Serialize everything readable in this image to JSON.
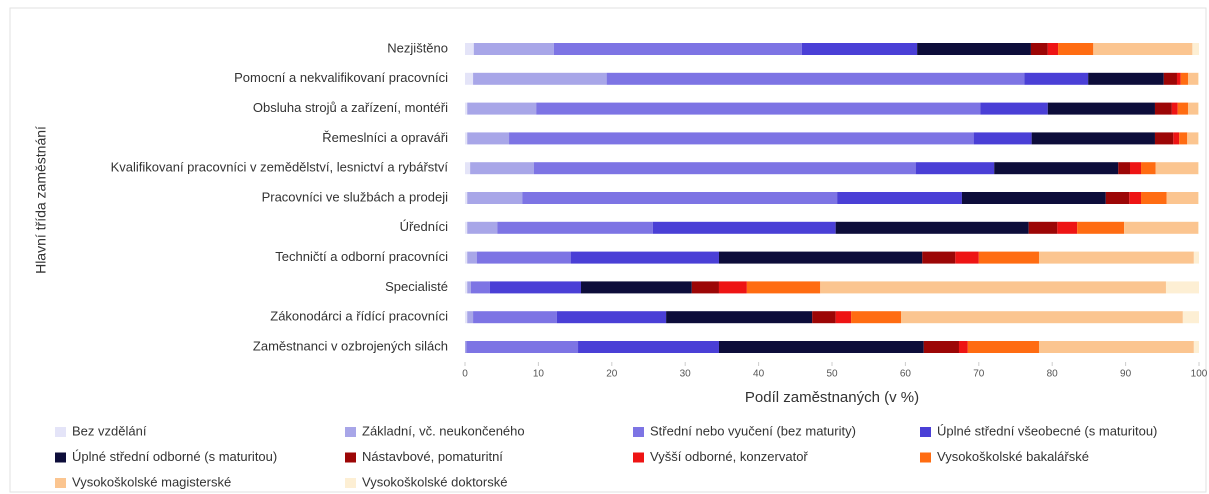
{
  "chart_data": {
    "type": "stacked-bar-horizontal",
    "xlabel": "Podíl zaměstnaných (v %)",
    "ylabel": "Hlavní třída zaměstnání",
    "categories": [
      "Nezjištěno",
      "Pomocní a nekvalifikovaní pracovníci",
      "Obsluha strojů a zařízení, montéři",
      "Řemeslníci a opraváři",
      "Kvalifikovaní pracovníci v zemědělství, lesnictví a rybářství",
      "Pracovníci ve službách a prodeji",
      "Úředníci",
      "Techničtí a odborní pracovníci",
      "Specialisté",
      "Zákonodárci a řídící pracovníci",
      "Zaměstnanci v ozbrojených silách"
    ],
    "xlim": [
      0,
      100
    ],
    "xticks": [
      0,
      10,
      20,
      30,
      40,
      50,
      60,
      70,
      80,
      90,
      100
    ],
    "series": [
      {
        "name": "Bez vzdělání",
        "color": "#e4e4f8",
        "values": [
          1.2,
          1.1,
          0.3,
          0.3,
          0.7,
          0.3,
          0.3,
          0.3,
          0.3,
          0.3,
          0
        ]
      },
      {
        "name": "Základní, vč. neukončeného",
        "color": "#a8a6e8",
        "values": [
          10.9,
          18.2,
          9.4,
          5.7,
          8.7,
          7.5,
          4.1,
          1.3,
          0.5,
          0.8,
          0.2
        ]
      },
      {
        "name": "Střední nebo vyučení (bez maturity)",
        "color": "#7d74e4",
        "values": [
          33.8,
          56.9,
          60.5,
          63.3,
          52.0,
          42.9,
          21.2,
          12.8,
          2.6,
          11.4,
          15.2
        ]
      },
      {
        "name": "Úplné střední všeobecné (s maturitou)",
        "color": "#4a3fd6",
        "values": [
          15.7,
          8.7,
          9.2,
          7.9,
          10.7,
          17.0,
          24.9,
          20.2,
          12.4,
          14.9,
          19.2
        ]
      },
      {
        "name": "Úplné střední odborné (s maturitou)",
        "color": "#0d0d3a",
        "values": [
          15.5,
          10.3,
          14.6,
          16.8,
          16.9,
          19.6,
          26.3,
          27.7,
          15.1,
          19.9,
          27.9
        ]
      },
      {
        "name": "Nástavbové, pomaturitní",
        "color": "#9c0606",
        "values": [
          2.3,
          1.8,
          2.3,
          2.5,
          1.6,
          3.2,
          3.9,
          4.5,
          3.7,
          3.2,
          4.8
        ]
      },
      {
        "name": "Vyšší odborné, konzervatoř",
        "color": "#ee1414",
        "values": [
          1.4,
          0.5,
          0.8,
          0.8,
          1.5,
          1.6,
          2.7,
          3.2,
          3.8,
          2.1,
          1.2
        ]
      },
      {
        "name": "Vysokoškolské bakalářské",
        "color": "#ff6c12",
        "values": [
          4.8,
          1.0,
          1.4,
          1.1,
          2.0,
          3.5,
          6.4,
          8.2,
          10.0,
          6.8,
          9.7
        ]
      },
      {
        "name": "Vysokoškolské magisterské",
        "color": "#fbc590",
        "values": [
          13.5,
          1.4,
          1.4,
          1.5,
          5.8,
          4.3,
          10.1,
          21.1,
          47.1,
          38.4,
          21.1
        ]
      },
      {
        "name": "Vysokoškolské doktorské",
        "color": "#fdefd4",
        "values": [
          0.9,
          0.1,
          0.1,
          0.1,
          0.1,
          0.1,
          0.1,
          0.7,
          4.5,
          2.2,
          0.7
        ]
      }
    ]
  }
}
